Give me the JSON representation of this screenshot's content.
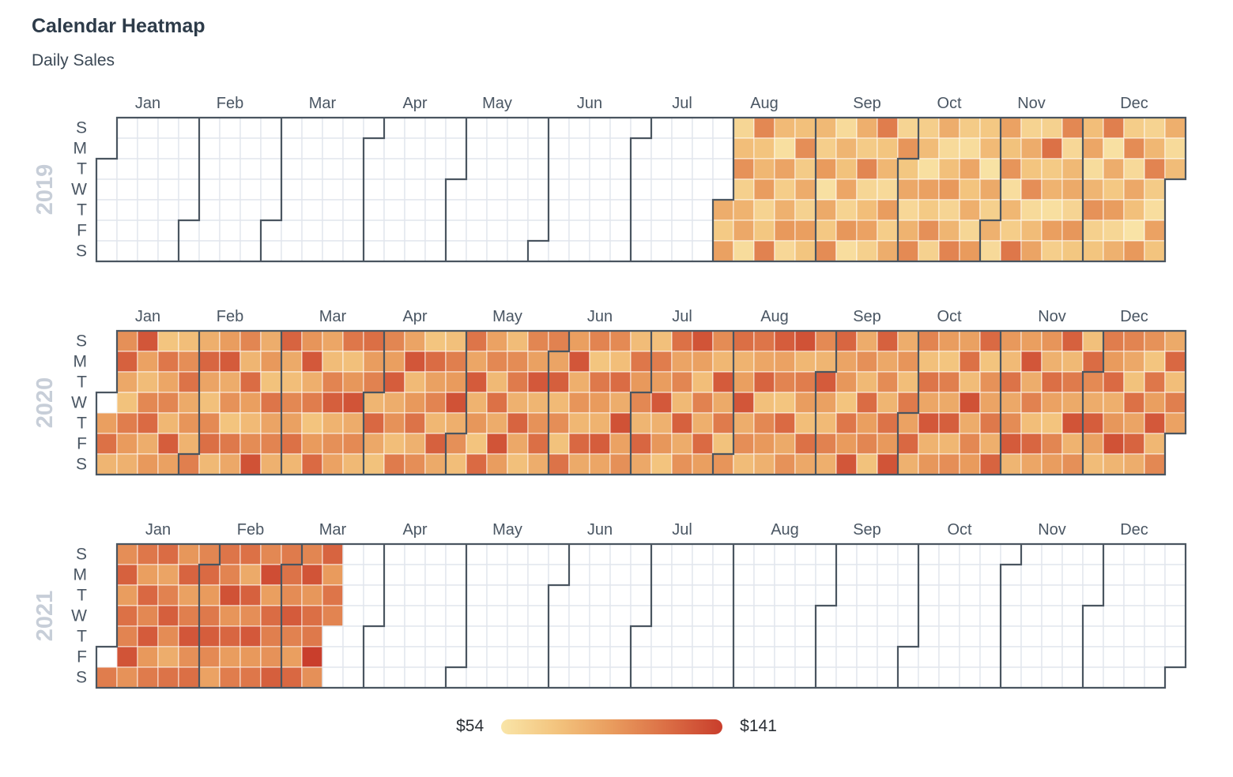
{
  "header": {
    "title": "Calendar Heatmap",
    "subtitle": "Daily Sales"
  },
  "chart_data": {
    "type": "heatmap",
    "variant": "calendar",
    "title": "Calendar Heatmap",
    "subtitle": "Daily Sales",
    "legend_position": "bottom-center",
    "color_scale": {
      "min": 54,
      "max": 141,
      "min_label": "$54",
      "max_label": "$141",
      "gradient_stops": [
        "#f9e5a8",
        "#f3c47e",
        "#e99c5e",
        "#db6e45",
        "#c93e2c"
      ]
    },
    "weekday_labels": [
      "S",
      "M",
      "T",
      "W",
      "T",
      "F",
      "S"
    ],
    "month_labels": [
      "Jan",
      "Feb",
      "Mar",
      "Apr",
      "May",
      "Jun",
      "Jul",
      "Aug",
      "Sep",
      "Oct",
      "Nov",
      "Dec"
    ],
    "style": {
      "month_outline_color": "#4a5560",
      "gridline_color": "#e2e6ed",
      "empty_cell_fill": "#ffffff",
      "filled_cell_border": "rgba(255,255,255,0.55)",
      "year_label_color": "#c7ced8",
      "axis_label_color": "#4a5663"
    },
    "years": [
      {
        "label": "2019",
        "year": 2019,
        "first_month": 8,
        "daily_values_by_month": [
          [
            88,
            72,
            95,
            64,
            79,
            102,
            68,
            85,
            91,
            60,
            107,
            76,
            83,
            97,
            66,
            74,
            110,
            81,
            58,
            93,
            70,
            86,
            99,
            63,
            78,
            104,
            71,
            89,
            67,
            96,
            75
          ],
          [
            82,
            69,
            98,
            57,
            90,
            73,
            105,
            61,
            84,
            77,
            92,
            66,
            100,
            59,
            87,
            71,
            108,
            64,
            79,
            94,
            68,
            112,
            75,
            83,
            62,
            97,
            70,
            88,
            65,
            101
          ],
          [
            74,
            91,
            63,
            85,
            106,
            69,
            80,
            58,
            95,
            72,
            103,
            67,
            88,
            61,
            78,
            99,
            65,
            84,
            109,
            71,
            60,
            92,
            76,
            87,
            64,
            98,
            73,
            81,
            56,
            90,
            68
          ],
          [
            86,
            62,
            94,
            77,
            101,
            59,
            83,
            70,
            115,
            66,
            89,
            75,
            104,
            61,
            80,
            93,
            67,
            118,
            72,
            85,
            58,
            96,
            69,
            107,
            63,
            82,
            90,
            65,
            100,
            74
          ],
          [
            79,
            92,
            60,
            84,
            102,
            68,
            75,
            111,
            57,
            88,
            73,
            97,
            64,
            86,
            70,
            105,
            62,
            91,
            78,
            55,
            99,
            66,
            83,
            109,
            71,
            59,
            94,
            76,
            87,
            61,
            80
          ]
        ]
      },
      {
        "label": "2020",
        "year": 2020,
        "first_month": 1,
        "daily_values_by_month": [
          [
            null,
            96,
            118,
            84,
            103,
            125,
            91,
            77,
            112,
            98,
            86,
            130,
            94,
            80,
            107,
            121,
            88,
            99,
            75,
            115,
            92,
            108,
            83,
            127,
            95,
            79,
            104,
            117,
            90,
            101,
            85
          ],
          [
            111,
            87,
            123,
            93,
            78,
            106,
            119,
            82,
            97,
            128,
            89,
            102,
            76,
            114,
            91,
            108,
            84,
            120,
            96,
            81,
            105,
            132,
            88,
            99,
            77,
            116,
            93,
            109,
            86
          ],
          [
            124,
            90,
            79,
            107,
            95,
            118,
            83,
            101,
            129,
            87,
            112,
            76,
            98,
            121,
            92,
            80,
            109,
            126,
            85,
            103,
            94,
            115,
            78,
            100,
            131,
            89,
            106,
            82,
            119,
            97,
            110
          ],
          [
            84,
            122,
            91,
            77,
            108,
            96,
            127,
            88,
            102,
            79,
            113,
            93,
            130,
            81,
            99,
            117,
            86,
            104,
            75,
            120,
            95,
            109,
            83,
            125,
            90,
            78,
            111,
            98,
            132,
            87
          ],
          [
            103,
            79,
            116,
            92,
            128,
            85,
            100,
            76,
            121,
            94,
            107,
            82,
            118,
            89,
            131,
            97,
            80,
            105,
            113,
            86,
            124,
            91,
            78,
            108,
            95,
            129,
            84,
            102,
            119,
            88,
            110
          ],
          [
            93,
            126,
            81,
            104,
            77,
            117,
            96,
            130,
            87,
            101,
            83,
            122,
            90,
            109,
            75,
            114,
            98,
            85,
            127,
            92,
            106,
            79,
            120,
            88,
            132,
            94,
            103,
            80,
            115,
            99
          ],
          [
            107,
            84,
            123,
            91,
            78,
            112,
            97,
            129,
            86,
            100,
            76,
            118,
            93,
            108,
            82,
            125,
            89,
            102,
            131,
            95,
            79,
            110,
            87,
            121,
            96,
            105,
            83,
            128,
            90,
            113,
            77
          ],
          [
            101,
            119,
            85,
            96,
            130,
            88,
            104,
            80,
            116,
            92,
            124,
            78,
            107,
            99,
            86,
            127,
            94,
            109,
            75,
            121,
            90,
            102,
            132,
            83,
            112,
            97,
            79,
            118,
            91,
            106,
            84
          ],
          [
            128,
            95,
            81,
            110,
            87,
            123,
            93,
            100,
            76,
            115,
            98,
            130,
            89,
            103,
            82,
            120,
            96,
            108,
            77,
            125,
            91,
            105,
            84,
            117,
            99,
            131,
            88,
            101,
            79,
            113
          ],
          [
            94,
            122,
            86,
            109,
            78,
            116,
            92,
            129,
            85,
            100,
            97,
            75,
            111,
            90,
            126,
            83,
            104,
            95,
            118,
            80,
            132,
            89,
            107,
            98,
            121,
            76,
            102,
            93,
            114,
            87,
            124
          ],
          [
            99,
            81,
            117,
            91,
            105,
            128,
            84,
            96,
            130,
            88,
            110,
            79,
            123,
            92,
            101,
            86,
            119,
            94,
            76,
            108,
            97,
            125,
            82,
            113,
            90,
            131,
            85,
            103,
            78,
            120
          ],
          [
            106,
            89,
            127,
            95,
            80,
            112,
            98,
            121,
            87,
            100,
            132,
            84,
            109,
            91,
            77,
            118,
            93,
            124,
            88,
            102,
            75,
            115,
            96,
            129,
            83,
            107,
            90,
            122,
            79,
            111,
            94
          ]
        ]
      },
      {
        "label": "2021",
        "year": 2021,
        "first_month": 1,
        "daily_values_by_month": [
          [
            null,
            112,
            104,
            125,
            97,
            118,
            109,
            131,
            102,
            115,
            96,
            122,
            107,
            128,
            99,
            113,
            120,
            93,
            110,
            126,
            105,
            88,
            117,
            100,
            124,
            95,
            111,
            130,
            103,
            119,
            108
          ],
          [
            121,
            98,
            114,
            127,
            106,
            94,
            116,
            109,
            132,
            101,
            123,
            97,
            112,
            118,
            90,
            125,
            104,
            129,
            99,
            115,
            107,
            134,
            96,
            120,
            111,
            102,
            126,
            113
          ],
          [
            117,
            105,
            128,
            110,
            96,
            122,
            108,
            131,
            100,
            119,
            114,
            141,
            103,
            124,
            98,
            116,
            109
          ]
        ]
      }
    ]
  }
}
